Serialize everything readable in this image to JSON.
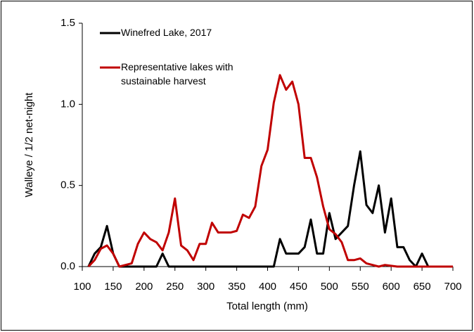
{
  "chart_data": {
    "type": "line",
    "xlabel": "Total length (mm)",
    "ylabel": "Walleye / 1/2 net-night",
    "x": [
      110,
      120,
      130,
      140,
      150,
      160,
      170,
      180,
      190,
      200,
      210,
      220,
      230,
      240,
      250,
      260,
      270,
      280,
      290,
      300,
      310,
      320,
      330,
      340,
      350,
      360,
      370,
      380,
      390,
      400,
      410,
      420,
      430,
      440,
      450,
      460,
      470,
      480,
      490,
      500,
      510,
      520,
      530,
      540,
      550,
      560,
      570,
      580,
      590,
      600,
      610,
      620,
      630,
      640,
      650,
      660,
      670,
      680,
      690,
      700
    ],
    "series": [
      {
        "name": "Winefred Lake, 2017",
        "color": "#000000",
        "values": [
          0,
          0.08,
          0.12,
          0.25,
          0.08,
          0,
          0,
          0,
          0,
          0,
          0,
          0,
          0.08,
          0,
          0,
          0,
          0,
          0,
          0,
          0,
          0,
          0,
          0,
          0,
          0,
          0,
          0,
          0,
          0,
          0,
          0,
          0.17,
          0.08,
          0.08,
          0.08,
          0.12,
          0.29,
          0.08,
          0.08,
          0.33,
          0.17,
          0.21,
          0.25,
          0.5,
          0.71,
          0.38,
          0.33,
          0.5,
          0.21,
          0.42,
          0.12,
          0.12,
          0.04,
          0,
          0.08,
          0,
          null,
          null,
          null,
          null
        ]
      },
      {
        "name": "Representative lakes with sustainable harvest",
        "color": "#c00000",
        "values": [
          0,
          0.04,
          0.11,
          0.13,
          0.08,
          0,
          0.01,
          0.02,
          0.14,
          0.21,
          0.17,
          0.15,
          0.1,
          0.21,
          0.42,
          0.13,
          0.1,
          0.04,
          0.14,
          0.14,
          0.27,
          0.21,
          0.21,
          0.21,
          0.22,
          0.32,
          0.3,
          0.37,
          0.62,
          0.72,
          1.01,
          1.18,
          1.09,
          1.14,
          1.0,
          0.67,
          0.67,
          0.55,
          0.37,
          0.23,
          0.2,
          0.15,
          0.04,
          0.04,
          0.05,
          0.02,
          0.01,
          0,
          0.01,
          0.005,
          0,
          0,
          0,
          0,
          0,
          0,
          0,
          0,
          0,
          0
        ]
      }
    ],
    "xlim": [
      100,
      700
    ],
    "xticks": [
      100,
      150,
      200,
      250,
      300,
      350,
      400,
      450,
      500,
      550,
      600,
      650,
      700
    ],
    "ylim": [
      0,
      1.5
    ],
    "yticks": [
      {
        "value": 0,
        "label": "0.0"
      },
      0.5,
      {
        "value": 1,
        "label": "1.0"
      },
      1.5
    ],
    "legend": "upper left",
    "grid": false
  }
}
